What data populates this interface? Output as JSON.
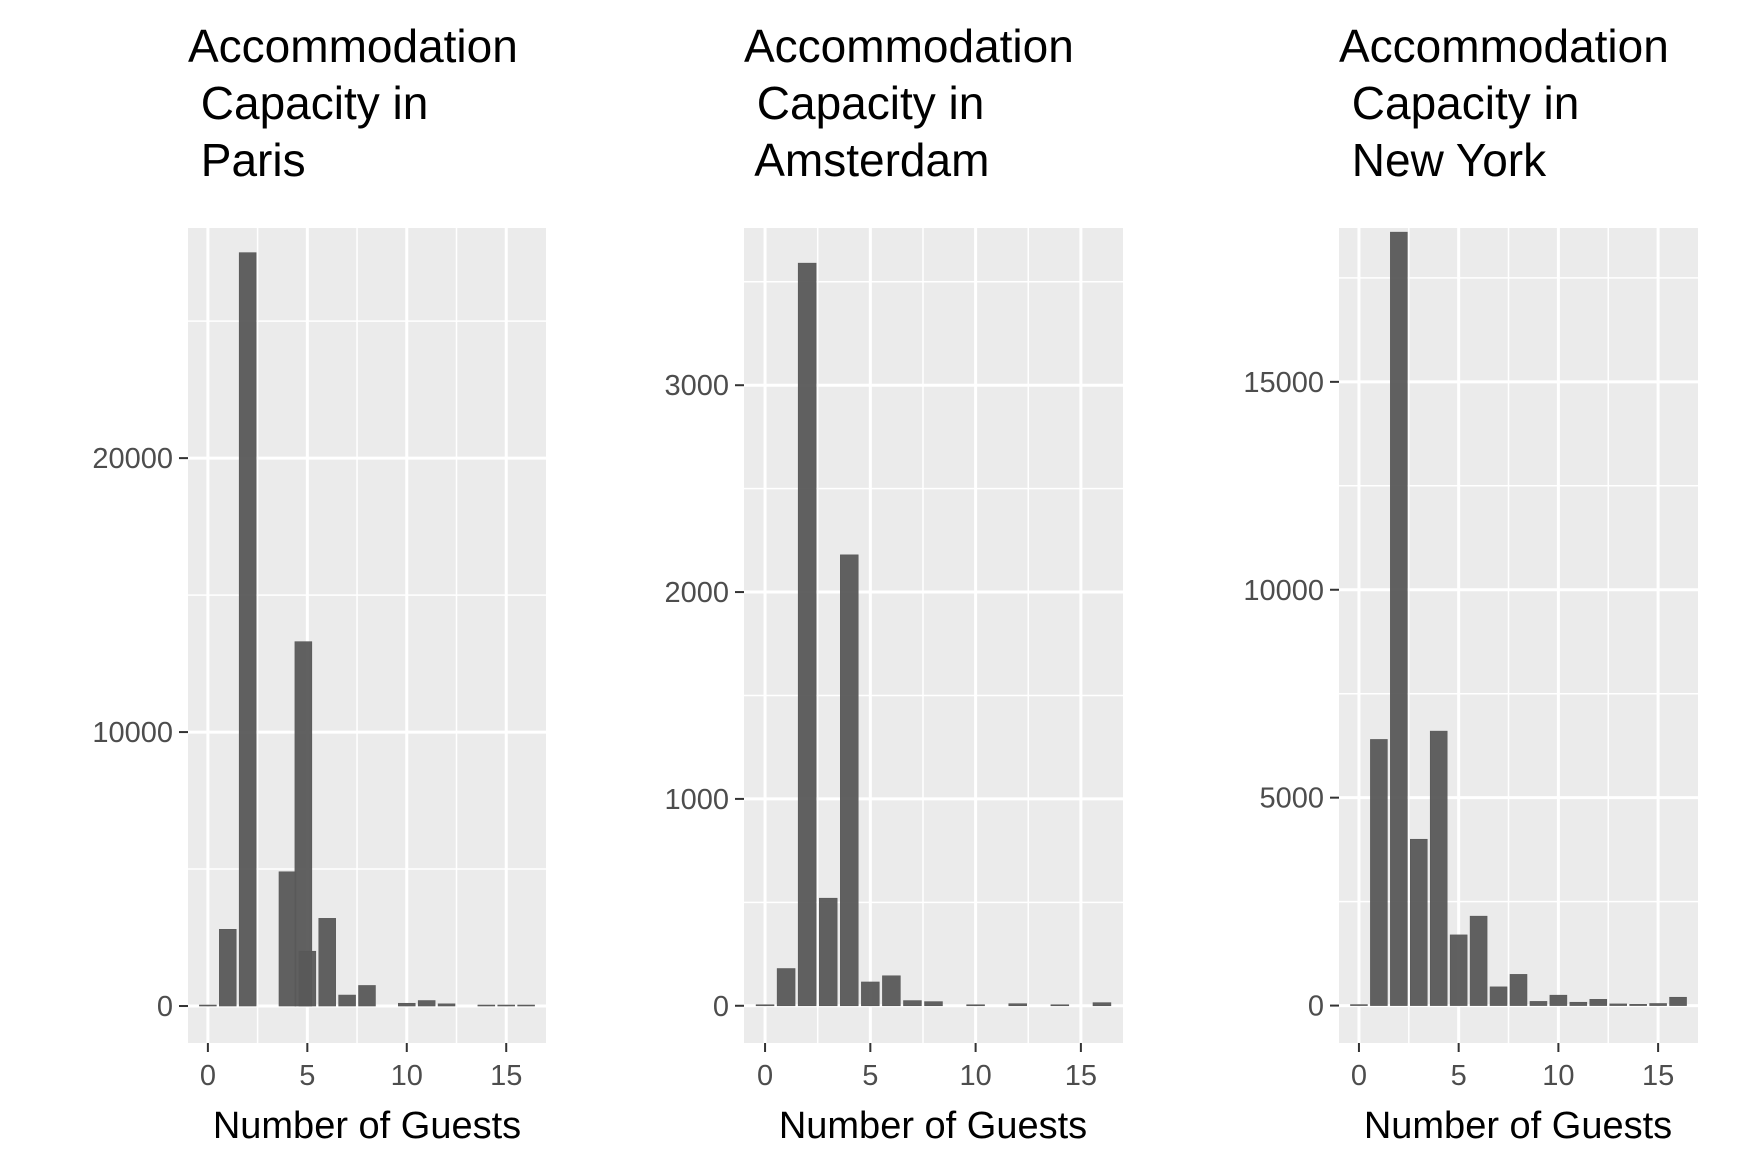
{
  "chart_data": [
    {
      "type": "bar",
      "title": "Accommodation\n Capacity in\n Paris",
      "xlabel": "Number of Guests",
      "ylabel": "",
      "xlim": [
        -1.0,
        17.0
      ],
      "ylim": [
        -1350,
        28400
      ],
      "x_ticks": [
        0,
        5,
        10,
        15
      ],
      "y_ticks": [
        0,
        10000,
        20000
      ],
      "bin_width": 0.85,
      "x": [
        0,
        1,
        2,
        4,
        4.8,
        5,
        6,
        7,
        8,
        10,
        11,
        12,
        14,
        15,
        16
      ],
      "values": [
        20,
        2800,
        27500,
        4900,
        13300,
        2000,
        3200,
        400,
        750,
        100,
        200,
        80,
        30,
        20,
        10
      ],
      "grid": true,
      "legend": "none",
      "bar_color": "#595959",
      "panel_color": "#ebebeb"
    },
    {
      "type": "bar",
      "title": "Accommodation\n Capacity in\n Amsterdam",
      "xlabel": "Number of Guests",
      "ylabel": "",
      "xlim": [
        -1.0,
        17.0
      ],
      "ylim": [
        -180,
        3760
      ],
      "x_ticks": [
        0,
        5,
        10,
        15
      ],
      "y_ticks": [
        0,
        1000,
        2000,
        3000
      ],
      "bin_width": 0.85,
      "x": [
        0,
        1,
        2,
        3,
        4,
        5,
        6,
        7,
        8,
        10,
        12,
        14,
        16
      ],
      "values": [
        5,
        180,
        3590,
        520,
        2180,
        115,
        145,
        25,
        20,
        5,
        10,
        5,
        15
      ],
      "grid": true,
      "legend": "none",
      "bar_color": "#595959",
      "panel_color": "#ebebeb"
    },
    {
      "type": "bar",
      "title": "Accommodation\n Capacity in\n New York",
      "xlabel": "Number of Guests",
      "ylabel": "",
      "xlim": [
        -1.0,
        17.0
      ],
      "ylim": [
        -900,
        18700
      ],
      "x_ticks": [
        0,
        5,
        10,
        15
      ],
      "y_ticks": [
        0,
        5000,
        10000,
        15000
      ],
      "bin_width": 0.85,
      "x": [
        0,
        1,
        2,
        3,
        4,
        5,
        6,
        7,
        8,
        9,
        10,
        11,
        12,
        13,
        14,
        15,
        16
      ],
      "values": [
        20,
        6400,
        18600,
        4000,
        6600,
        1700,
        2150,
        450,
        750,
        100,
        250,
        80,
        150,
        40,
        30,
        50,
        200
      ],
      "grid": true,
      "legend": "none",
      "bar_color": "#595959",
      "panel_color": "#ebebeb"
    }
  ]
}
